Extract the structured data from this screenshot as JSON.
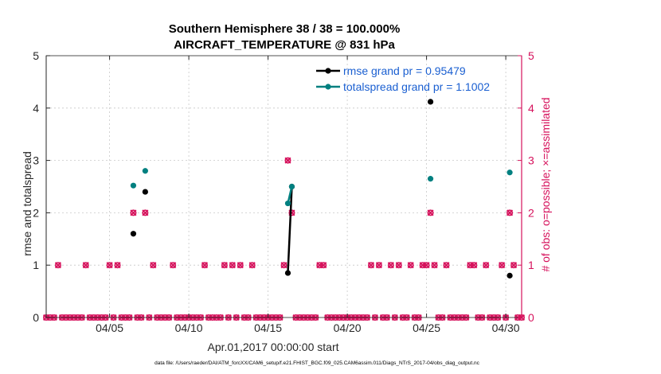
{
  "chart_data": {
    "type": "scatter",
    "title": "Southern Hemisphere 38 / 38 = 100.000%",
    "subtitle": "AIRCRAFT_TEMPERATURE @ 831 hPa",
    "xlabel": "Apr.01,2017 00:00:00 start",
    "ylabel": "rmse and totalspread",
    "y2label": "# of obs: o=possible; ×=assimilated",
    "xlim": [
      1,
      31
    ],
    "ylim": [
      0,
      5
    ],
    "y2lim": [
      0,
      5
    ],
    "x_ticks": [
      5,
      10,
      15,
      20,
      25,
      30
    ],
    "x_tick_labels": [
      "04/05",
      "04/10",
      "04/15",
      "04/20",
      "04/25",
      "04/30"
    ],
    "y_ticks": [
      0,
      1,
      2,
      3,
      4,
      5
    ],
    "y_tick_labels": [
      "0",
      "1",
      "2",
      "3",
      "4",
      "5"
    ],
    "y2_ticks": [
      0,
      1,
      2,
      3,
      4,
      5
    ],
    "y2_tick_labels": [
      "0",
      "1",
      "2",
      "3",
      "4",
      "5"
    ],
    "grid": true,
    "legend_position": "top-right",
    "footer": "data file: /Users/raeder/DAI/ATM_forcXX/CAM6_setup/f.e21.FHIST_BGC.f09_025.CAM6assim.011/Diags_NTrS_2017-04/obs_diag_output.nc",
    "colors": {
      "rmse": "#000000",
      "spread": "#008080",
      "obs": "#d6125c",
      "legend_text": "#1a5fd1",
      "grid": "#c8c8c8"
    },
    "series": [
      {
        "name": "rmse grand pr = 0.95479",
        "x": [
          6.5,
          7.25,
          16.25,
          16.5,
          25.25,
          30.25
        ],
        "y": [
          1.6,
          2.4,
          0.85,
          2.5,
          4.12,
          0.8
        ]
      },
      {
        "name": "totalspread grand pr = 1.1002",
        "x": [
          6.5,
          7.25,
          16.25,
          16.5,
          25.25,
          30.25
        ],
        "y": [
          2.52,
          2.8,
          2.18,
          2.5,
          2.65,
          2.77
        ]
      }
    ],
    "obs_counts": {
      "x": [
        1.75,
        3.5,
        5.0,
        5.5,
        6.5,
        7.25,
        7.75,
        9.0,
        11.0,
        12.25,
        12.75,
        13.25,
        14.0,
        16.0,
        16.25,
        16.5,
        18.25,
        18.5,
        21.5,
        22.0,
        22.75,
        23.25,
        24.0,
        24.75,
        25.0,
        25.25,
        25.5,
        26.25,
        27.75,
        28.0,
        28.75,
        29.75,
        30.25,
        30.5
      ],
      "possible": [
        1,
        1,
        1,
        1,
        2,
        2,
        1,
        1,
        1,
        1,
        1,
        1,
        1,
        1,
        3,
        2,
        1,
        1,
        1,
        1,
        1,
        1,
        1,
        1,
        1,
        2,
        1,
        1,
        1,
        1,
        1,
        1,
        2,
        1
      ],
      "assimilated": [
        1,
        1,
        1,
        1,
        2,
        2,
        1,
        1,
        1,
        1,
        1,
        1,
        1,
        1,
        3,
        2,
        1,
        1,
        1,
        1,
        1,
        1,
        1,
        1,
        1,
        2,
        1,
        1,
        1,
        1,
        1,
        1,
        2,
        1
      ]
    },
    "zero_obs_x_step": 0.25
  }
}
